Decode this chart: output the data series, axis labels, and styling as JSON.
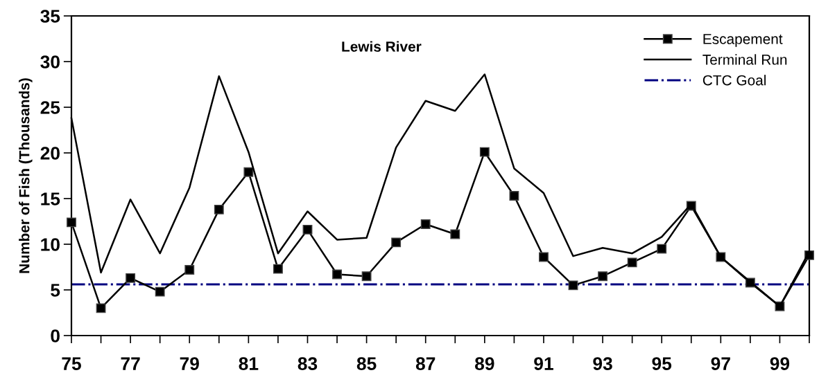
{
  "chart_data": {
    "type": "line",
    "title": "Lewis River",
    "ylabel": "Number of Fish (Thousands)",
    "categories": [
      "75",
      null,
      "77",
      null,
      "79",
      null,
      "81",
      null,
      "83",
      null,
      "85",
      null,
      "87",
      null,
      "89",
      null,
      "91",
      null,
      "93",
      null,
      "95",
      null,
      "97",
      null,
      "99",
      null
    ],
    "series": [
      {
        "name": "Escapement",
        "color": "#000000",
        "marker": "square",
        "values": [
          12.4,
          3.0,
          6.3,
          4.8,
          7.2,
          13.8,
          17.9,
          7.3,
          11.6,
          6.7,
          6.5,
          10.2,
          12.2,
          11.1,
          20.1,
          15.3,
          8.6,
          5.5,
          6.5,
          8.0,
          9.5,
          14.2,
          8.6,
          5.8,
          3.2,
          8.8
        ]
      },
      {
        "name": "Terminal Run",
        "color": "#000000",
        "marker": "none",
        "values": [
          23.8,
          6.9,
          14.9,
          9.0,
          16.2,
          28.4,
          20.1,
          9.0,
          13.6,
          10.5,
          10.7,
          20.6,
          25.7,
          24.6,
          28.6,
          18.3,
          15.6,
          8.7,
          9.6,
          9.0,
          10.8,
          14.4,
          8.6,
          5.9,
          3.2,
          9.2
        ]
      }
    ],
    "ref_lines": [
      {
        "axis": "y",
        "value": 5.6,
        "label": "CTC Goal",
        "color": "#000080",
        "line_style": "dashdot"
      }
    ],
    "ylim": [
      0,
      35
    ],
    "yticks": [
      0,
      5,
      10,
      15,
      20,
      25,
      30,
      35
    ],
    "grid": false,
    "legend": "top right"
  }
}
